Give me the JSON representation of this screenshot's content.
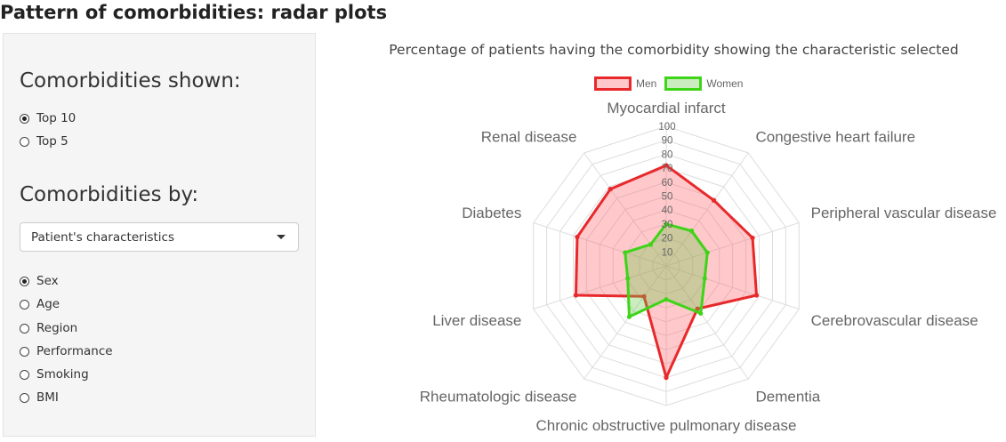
{
  "page": {
    "title": "Pattern of comorbidities: radar plots"
  },
  "sidebar": {
    "shown_title": "Comorbidities shown:",
    "shown_options": [
      {
        "label": "Top 10",
        "checked": true
      },
      {
        "label": "Top 5",
        "checked": false
      }
    ],
    "by_title": "Comorbidities by:",
    "select_value": "Patient's characteristics",
    "characteristic_options": [
      {
        "label": "Sex",
        "checked": true
      },
      {
        "label": "Age",
        "checked": false
      },
      {
        "label": "Region",
        "checked": false
      },
      {
        "label": "Performance",
        "checked": false
      },
      {
        "label": "Smoking",
        "checked": false
      },
      {
        "label": "BMI",
        "checked": false
      }
    ]
  },
  "chart_data": {
    "type": "radar",
    "title": "Percentage of patients having the comorbidity showing the characteristic selected",
    "axes": [
      "Myocardial infarct",
      "Congestive heart failure",
      "Peripheral vascular disease",
      "Cerebrovascular disease",
      "Dementia",
      "Chronic obstructive pulmonary disease",
      "Rheumatologic disease",
      "Liver disease",
      "Diabetes",
      "Renal disease"
    ],
    "r_range": [
      0,
      100
    ],
    "ticks": [
      10,
      20,
      30,
      40,
      50,
      60,
      70,
      80,
      90,
      100
    ],
    "legend_position": "top",
    "series": [
      {
        "name": "Men",
        "color": "#e8292b",
        "fill": "rgba(255, 99, 110, 0.35)",
        "values": [
          72,
          58,
          65,
          68,
          38,
          80,
          27,
          68,
          67,
          68
        ]
      },
      {
        "name": "Women",
        "color": "#3ed418",
        "fill": "rgba(106, 200, 70, 0.35)",
        "values": [
          30,
          31,
          31,
          29,
          42,
          24,
          45,
          29,
          31,
          19
        ]
      }
    ]
  }
}
